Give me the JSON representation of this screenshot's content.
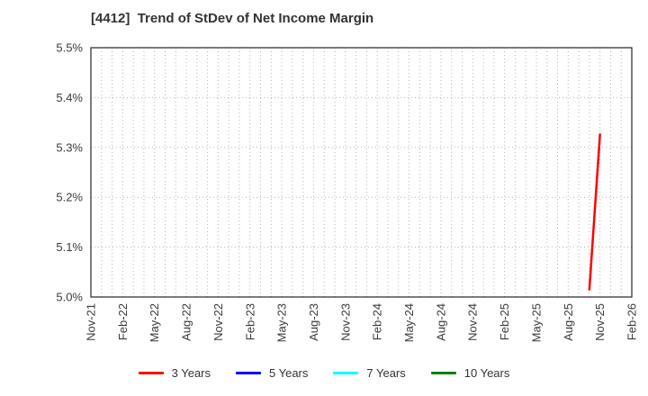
{
  "chart_data": {
    "type": "line",
    "title": "[4412]  Trend of StDev of Net Income Margin",
    "xlabel": "",
    "ylabel": "",
    "ylim": [
      5.0,
      5.5
    ],
    "y_ticks": [
      {
        "value": 5.0,
        "label": "5.0%"
      },
      {
        "value": 5.1,
        "label": "5.1%"
      },
      {
        "value": 5.2,
        "label": "5.2%"
      },
      {
        "value": 5.3,
        "label": "5.3%"
      },
      {
        "value": 5.4,
        "label": "5.4%"
      },
      {
        "value": 5.5,
        "label": "5.5%"
      }
    ],
    "x_tick_labels": [
      "Nov-21",
      "Feb-22",
      "May-22",
      "Aug-22",
      "Nov-22",
      "Feb-23",
      "May-23",
      "Aug-23",
      "Nov-23",
      "Feb-24",
      "May-24",
      "Aug-24",
      "Nov-24",
      "Feb-25",
      "May-25",
      "Aug-25",
      "Nov-25",
      "Feb-26"
    ],
    "x_label_every_months": 3,
    "months_total": 51,
    "grid": "dotted monthly vertical lines and dotted horizontal lines every 0.1%",
    "legend_position": "bottom",
    "series": [
      {
        "name": "3 Years",
        "color": "#ff0000",
        "points": [
          {
            "month": 47,
            "x_label": "Oct-25",
            "value": 5.015
          },
          {
            "month": 48,
            "x_label": "Nov-25",
            "value": 5.326
          }
        ]
      },
      {
        "name": "5 Years",
        "color": "#0000ff",
        "points": []
      },
      {
        "name": "7 Years",
        "color": "#00ffff",
        "points": []
      },
      {
        "name": "10 Years",
        "color": "#008000",
        "points": []
      }
    ]
  },
  "colors": {
    "axis_frame": "#262626",
    "gridline": "#b5b5b5",
    "title_text": "#333333",
    "tick_text": "#3a3a3a",
    "background": "#ffffff"
  }
}
